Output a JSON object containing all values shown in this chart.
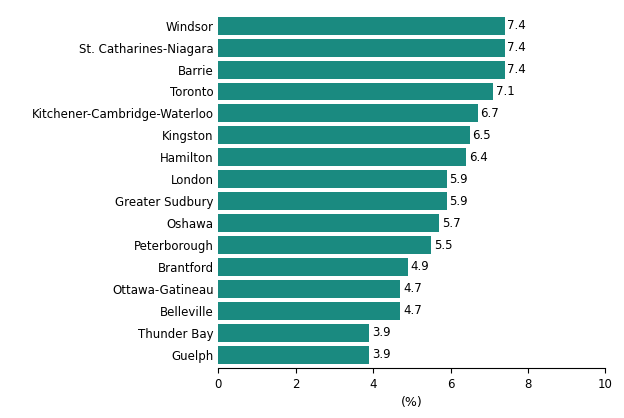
{
  "categories": [
    "Guelph",
    "Thunder Bay",
    "Belleville",
    "Ottawa-Gatineau",
    "Brantford",
    "Peterborough",
    "Oshawa",
    "Greater Sudbury",
    "London",
    "Hamilton",
    "Kingston",
    "Kitchener-Cambridge-Waterloo",
    "Toronto",
    "Barrie",
    "St. Catharines-Niagara",
    "Windsor"
  ],
  "values": [
    3.9,
    3.9,
    4.7,
    4.7,
    4.9,
    5.5,
    5.7,
    5.9,
    5.9,
    6.4,
    6.5,
    6.7,
    7.1,
    7.4,
    7.4,
    7.4
  ],
  "bar_color": "#1a8a80",
  "xlabel": "(%)",
  "xlim": [
    0,
    10
  ],
  "xticks": [
    0,
    2,
    4,
    6,
    8,
    10
  ],
  "label_fontsize": 8.5,
  "tick_fontsize": 8.5,
  "xlabel_fontsize": 9,
  "bar_height": 0.82,
  "figure_width": 6.24,
  "figure_height": 4.18,
  "dpi": 100
}
